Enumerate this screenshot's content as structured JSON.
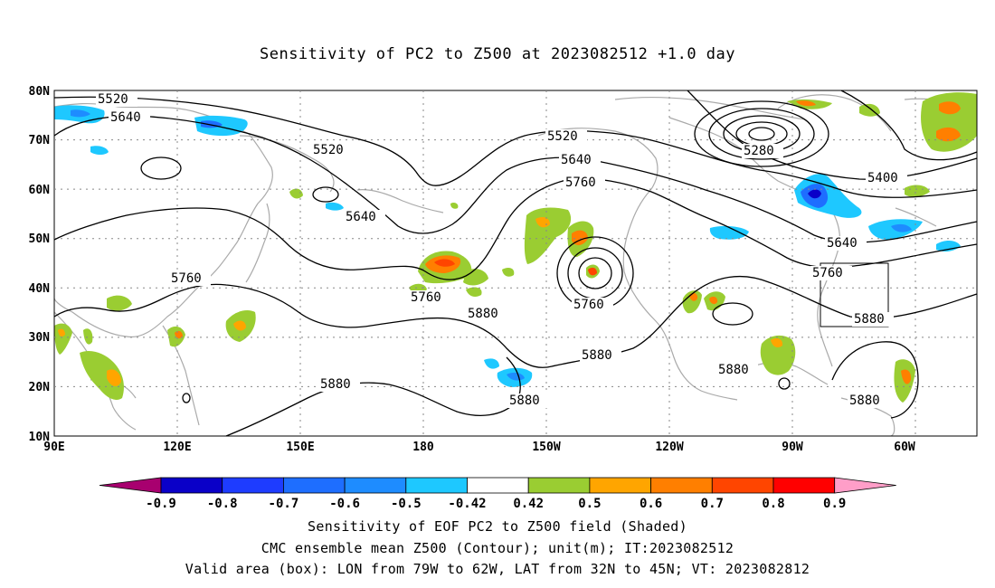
{
  "title": "Sensitivity of PC2 to Z500 at 2023082512 +1.0 day",
  "lat_labels": [
    "80N",
    "70N",
    "60N",
    "50N",
    "40N",
    "30N",
    "20N",
    "10N"
  ],
  "lon_labels": [
    "90E",
    "120E",
    "150E",
    "180",
    "150W",
    "120W",
    "90W",
    "60W"
  ],
  "contour_labels": [
    "5520",
    "5640",
    "5520",
    "5640",
    "5760",
    "5760",
    "5880",
    "5880",
    "5880",
    "5520",
    "5640",
    "5760",
    "5760",
    "5880",
    "5880",
    "5280",
    "5400",
    "5640",
    "5760",
    "5880",
    "5880"
  ],
  "colorbar": {
    "labels": [
      "-0.9",
      "-0.8",
      "-0.7",
      "-0.6",
      "-0.5",
      "-0.42",
      "0.42",
      "0.5",
      "0.6",
      "0.7",
      "0.8",
      "0.9"
    ],
    "colors": [
      "#a8006f",
      "#0a00c8",
      "#1e3cff",
      "#1e6eff",
      "#1e8cff",
      "#1ec8ff",
      "#ffffff",
      "#9acd32",
      "#ffa500",
      "#ff7f00",
      "#ff4500",
      "#ff0000",
      "#ff9ec8"
    ]
  },
  "caption": {
    "line1": "Sensitivity of EOF PC2 to Z500 field (Shaded)",
    "line2": "CMC ensemble mean Z500 (Contour); unit(m); IT:2023082512",
    "line3": "Valid area (box): LON from 79W to 62W, LAT from 32N to 45N; VT: 2023082812"
  },
  "valid_box": {
    "lon_from": "79W",
    "lon_to": "62W",
    "lat_from": "32N",
    "lat_to": "45N"
  }
}
